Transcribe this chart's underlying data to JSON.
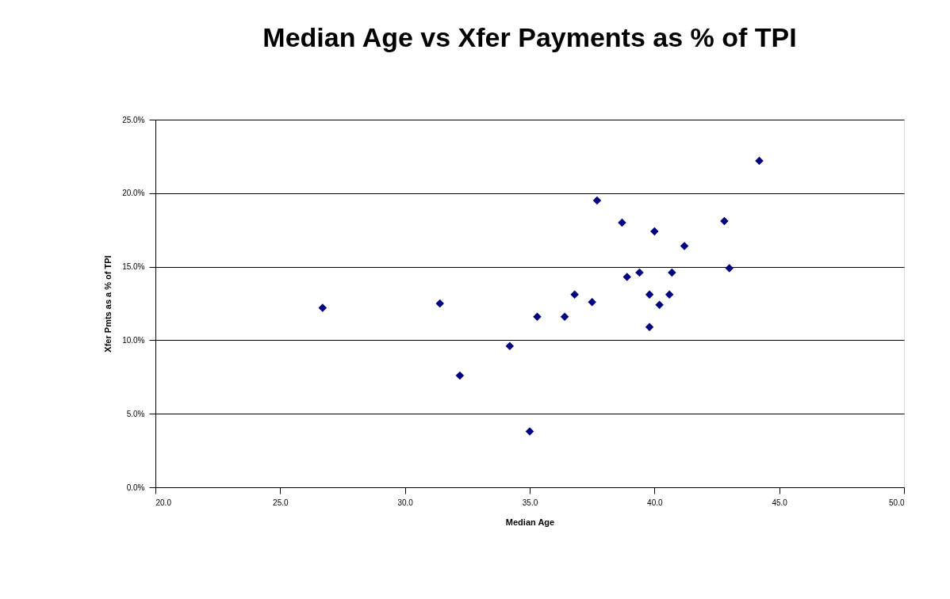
{
  "chart_data": {
    "type": "scatter",
    "title": "Median Age vs Xfer Payments as % of TPI",
    "xlabel": "Median Age",
    "ylabel": "Xfer Pmts as a % of TPI",
    "x": [
      26.7,
      31.4,
      32.2,
      34.2,
      35.0,
      35.3,
      36.4,
      36.8,
      37.5,
      37.7,
      38.7,
      38.9,
      39.4,
      39.8,
      39.8,
      40.0,
      40.2,
      40.6,
      40.7,
      41.2,
      42.8,
      43.0,
      44.2
    ],
    "series": [
      {
        "color": "#000080",
        "values": [
          12.2,
          12.5,
          7.6,
          9.6,
          3.8,
          11.6,
          11.6,
          13.1,
          12.6,
          19.5,
          18.0,
          14.3,
          14.6,
          13.1,
          10.9,
          17.4,
          12.4,
          13.1,
          14.6,
          16.4,
          18.1,
          14.9,
          22.2
        ]
      }
    ],
    "xlim": [
      20,
      50
    ],
    "xticks": [
      {
        "value": 20,
        "label": "20.0"
      },
      {
        "value": 25,
        "label": "25.0"
      },
      {
        "value": 30,
        "label": "30.0"
      },
      {
        "value": 35,
        "label": "35.0"
      },
      {
        "value": 40,
        "label": "40.0"
      },
      {
        "value": 45,
        "label": "45.0"
      },
      {
        "value": 50,
        "label": "50.0"
      }
    ],
    "ylim": [
      0,
      25
    ],
    "yticks": [
      {
        "value": 0,
        "label": "0.0%"
      },
      {
        "value": 5,
        "label": "5.0%"
      },
      {
        "value": 10,
        "label": "10.0%"
      },
      {
        "value": 15,
        "label": "15.0%"
      },
      {
        "value": 20,
        "label": "20.0%"
      },
      {
        "value": 25,
        "label": "25.0%"
      }
    ],
    "grid": "y",
    "marker": "diamond",
    "legend": false
  }
}
